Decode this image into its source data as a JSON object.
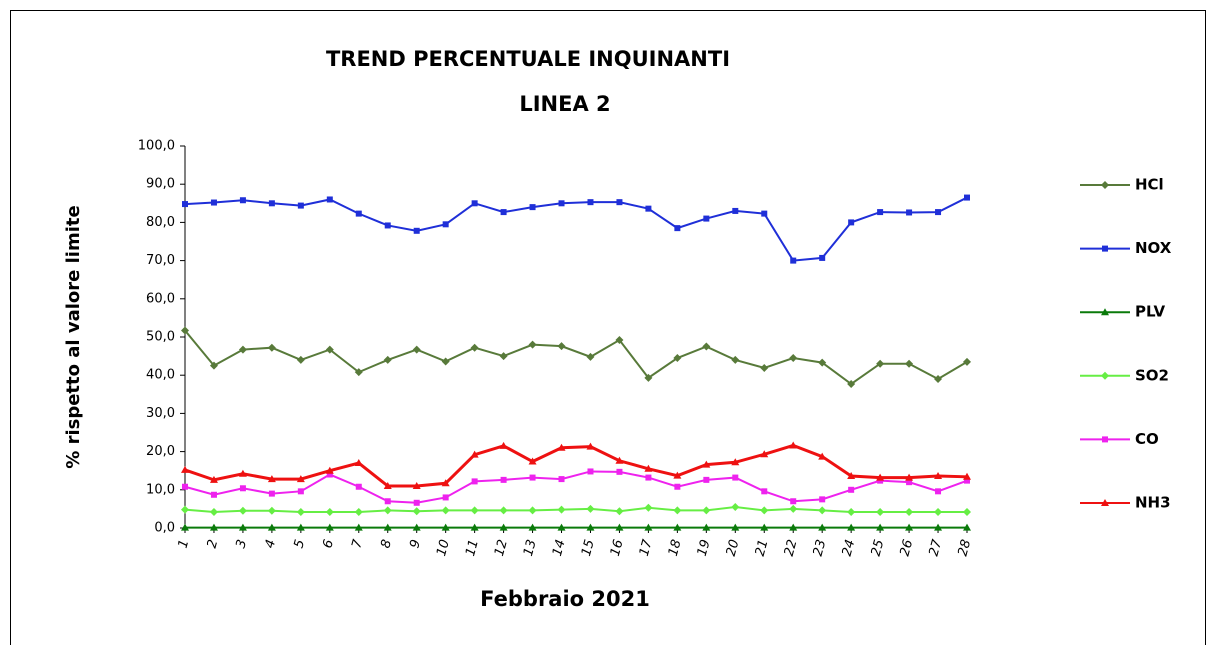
{
  "chart_data": {
    "type": "line",
    "title": "TREND PERCENTUALE  INQUINANTI",
    "subtitle": "LINEA 2",
    "x_label": "Febbraio 2021",
    "y_label": "% rispetto al valore limite",
    "categories": [
      "1",
      "2",
      "3",
      "4",
      "5",
      "6",
      "7",
      "8",
      "9",
      "10",
      "11",
      "12",
      "13",
      "14",
      "15",
      "16",
      "17",
      "18",
      "19",
      "20",
      "21",
      "22",
      "23",
      "24",
      "25",
      "26",
      "27",
      "28"
    ],
    "ylim": [
      0,
      100
    ],
    "yticks": [
      {
        "value": 0,
        "label": "0,0"
      },
      {
        "value": 10,
        "label": "10,0"
      },
      {
        "value": 20,
        "label": "20,0"
      },
      {
        "value": 30,
        "label": "30,0"
      },
      {
        "value": 40,
        "label": "40,0"
      },
      {
        "value": 50,
        "label": "50,0"
      },
      {
        "value": 60,
        "label": "60,0"
      },
      {
        "value": 70,
        "label": "70,0"
      },
      {
        "value": 80,
        "label": "80,0"
      },
      {
        "value": 90,
        "label": "90,0"
      },
      {
        "value": 100,
        "label": "100,0"
      }
    ],
    "legend": "right",
    "series": [
      {
        "name": "HCl",
        "color": "#587a3a",
        "marker": "diamond",
        "values": [
          51.7,
          42.5,
          46.7,
          47.2,
          44,
          46.7,
          40.8,
          44,
          46.7,
          43.6,
          47.2,
          45,
          48,
          47.6,
          44.8,
          49.2,
          39.3,
          44.5,
          47.5,
          44,
          41.9,
          44.5,
          43.3,
          37.7,
          43,
          43,
          39,
          43.5
        ]
      },
      {
        "name": "NOX",
        "color": "#1f2fd8",
        "marker": "square",
        "values": [
          84.8,
          85.2,
          85.8,
          85,
          84.4,
          86,
          82.3,
          79.2,
          77.8,
          79.5,
          85,
          82.7,
          84,
          85,
          85.3,
          85.3,
          83.6,
          78.5,
          81,
          83,
          82.3,
          70,
          70.7,
          80,
          82.7,
          82.6,
          82.7,
          86.5
        ]
      },
      {
        "name": "PLV",
        "color": "#0a7a0a",
        "marker": "triangle",
        "values": [
          0.1,
          0.1,
          0.1,
          0.1,
          0.1,
          0.1,
          0.1,
          0.1,
          0.1,
          0.1,
          0.1,
          0.1,
          0.1,
          0.1,
          0.1,
          0.1,
          0.1,
          0.1,
          0.1,
          0.1,
          0.1,
          0.1,
          0.1,
          0.1,
          0.1,
          0.1,
          0.1,
          0.1
        ]
      },
      {
        "name": "SO2",
        "color": "#66ee44",
        "marker": "diamond",
        "values": [
          4.8,
          4.2,
          4.5,
          4.5,
          4.2,
          4.2,
          4.2,
          4.6,
          4.4,
          4.6,
          4.6,
          4.6,
          4.6,
          4.8,
          5,
          4.4,
          5.3,
          4.6,
          4.6,
          5.5,
          4.6,
          5,
          4.6,
          4.2,
          4.2,
          4.2,
          4.2,
          4.2
        ]
      },
      {
        "name": "CO",
        "color": "#ee22ee",
        "marker": "square",
        "values": [
          10.8,
          8.7,
          10.4,
          9,
          9.6,
          14,
          10.8,
          7,
          6.6,
          8,
          12.2,
          12.6,
          13.2,
          12.8,
          14.8,
          14.7,
          13.2,
          10.8,
          12.6,
          13.2,
          9.6,
          7,
          7.5,
          10,
          12.4,
          12,
          9.6,
          12.4
        ]
      },
      {
        "name": "NH3",
        "color": "#ee1111",
        "marker": "triangle",
        "values": [
          15.2,
          12.6,
          14.2,
          12.8,
          12.8,
          15,
          17,
          11,
          11,
          11.7,
          19.2,
          21.5,
          17.4,
          21,
          21.3,
          17.6,
          15.5,
          13.7,
          16.6,
          17.2,
          19.3,
          21.6,
          18.7,
          13.6,
          13.2,
          13.2,
          13.6,
          13.4
        ]
      }
    ]
  }
}
